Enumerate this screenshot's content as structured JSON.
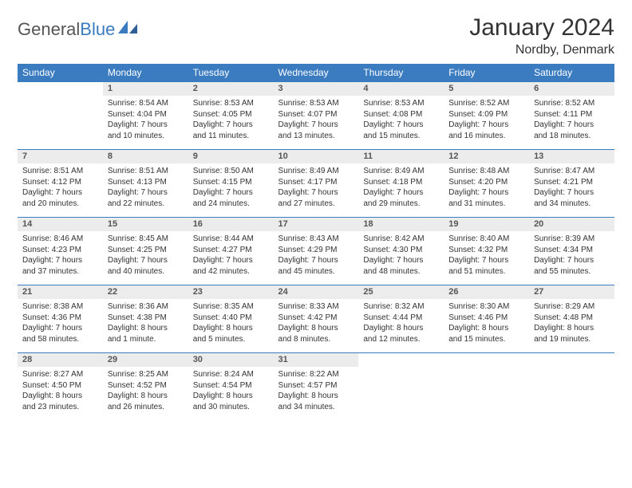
{
  "brand": {
    "part1": "General",
    "part2": "Blue"
  },
  "title": "January 2024",
  "location": "Nordby, Denmark",
  "colors": {
    "header_bg": "#3b7bbf",
    "header_text": "#ffffff",
    "daynum_bg": "#ececec",
    "daynum_border": "#3b7bbf",
    "text": "#333333",
    "page_bg": "#ffffff"
  },
  "weekdays": [
    "Sunday",
    "Monday",
    "Tuesday",
    "Wednesday",
    "Thursday",
    "Friday",
    "Saturday"
  ],
  "weeks": [
    [
      {
        "n": "",
        "sunrise": "",
        "sunset": "",
        "daylight1": "",
        "daylight2": ""
      },
      {
        "n": "1",
        "sunrise": "Sunrise: 8:54 AM",
        "sunset": "Sunset: 4:04 PM",
        "daylight1": "Daylight: 7 hours",
        "daylight2": "and 10 minutes."
      },
      {
        "n": "2",
        "sunrise": "Sunrise: 8:53 AM",
        "sunset": "Sunset: 4:05 PM",
        "daylight1": "Daylight: 7 hours",
        "daylight2": "and 11 minutes."
      },
      {
        "n": "3",
        "sunrise": "Sunrise: 8:53 AM",
        "sunset": "Sunset: 4:07 PM",
        "daylight1": "Daylight: 7 hours",
        "daylight2": "and 13 minutes."
      },
      {
        "n": "4",
        "sunrise": "Sunrise: 8:53 AM",
        "sunset": "Sunset: 4:08 PM",
        "daylight1": "Daylight: 7 hours",
        "daylight2": "and 15 minutes."
      },
      {
        "n": "5",
        "sunrise": "Sunrise: 8:52 AM",
        "sunset": "Sunset: 4:09 PM",
        "daylight1": "Daylight: 7 hours",
        "daylight2": "and 16 minutes."
      },
      {
        "n": "6",
        "sunrise": "Sunrise: 8:52 AM",
        "sunset": "Sunset: 4:11 PM",
        "daylight1": "Daylight: 7 hours",
        "daylight2": "and 18 minutes."
      }
    ],
    [
      {
        "n": "7",
        "sunrise": "Sunrise: 8:51 AM",
        "sunset": "Sunset: 4:12 PM",
        "daylight1": "Daylight: 7 hours",
        "daylight2": "and 20 minutes."
      },
      {
        "n": "8",
        "sunrise": "Sunrise: 8:51 AM",
        "sunset": "Sunset: 4:13 PM",
        "daylight1": "Daylight: 7 hours",
        "daylight2": "and 22 minutes."
      },
      {
        "n": "9",
        "sunrise": "Sunrise: 8:50 AM",
        "sunset": "Sunset: 4:15 PM",
        "daylight1": "Daylight: 7 hours",
        "daylight2": "and 24 minutes."
      },
      {
        "n": "10",
        "sunrise": "Sunrise: 8:49 AM",
        "sunset": "Sunset: 4:17 PM",
        "daylight1": "Daylight: 7 hours",
        "daylight2": "and 27 minutes."
      },
      {
        "n": "11",
        "sunrise": "Sunrise: 8:49 AM",
        "sunset": "Sunset: 4:18 PM",
        "daylight1": "Daylight: 7 hours",
        "daylight2": "and 29 minutes."
      },
      {
        "n": "12",
        "sunrise": "Sunrise: 8:48 AM",
        "sunset": "Sunset: 4:20 PM",
        "daylight1": "Daylight: 7 hours",
        "daylight2": "and 31 minutes."
      },
      {
        "n": "13",
        "sunrise": "Sunrise: 8:47 AM",
        "sunset": "Sunset: 4:21 PM",
        "daylight1": "Daylight: 7 hours",
        "daylight2": "and 34 minutes."
      }
    ],
    [
      {
        "n": "14",
        "sunrise": "Sunrise: 8:46 AM",
        "sunset": "Sunset: 4:23 PM",
        "daylight1": "Daylight: 7 hours",
        "daylight2": "and 37 minutes."
      },
      {
        "n": "15",
        "sunrise": "Sunrise: 8:45 AM",
        "sunset": "Sunset: 4:25 PM",
        "daylight1": "Daylight: 7 hours",
        "daylight2": "and 40 minutes."
      },
      {
        "n": "16",
        "sunrise": "Sunrise: 8:44 AM",
        "sunset": "Sunset: 4:27 PM",
        "daylight1": "Daylight: 7 hours",
        "daylight2": "and 42 minutes."
      },
      {
        "n": "17",
        "sunrise": "Sunrise: 8:43 AM",
        "sunset": "Sunset: 4:29 PM",
        "daylight1": "Daylight: 7 hours",
        "daylight2": "and 45 minutes."
      },
      {
        "n": "18",
        "sunrise": "Sunrise: 8:42 AM",
        "sunset": "Sunset: 4:30 PM",
        "daylight1": "Daylight: 7 hours",
        "daylight2": "and 48 minutes."
      },
      {
        "n": "19",
        "sunrise": "Sunrise: 8:40 AM",
        "sunset": "Sunset: 4:32 PM",
        "daylight1": "Daylight: 7 hours",
        "daylight2": "and 51 minutes."
      },
      {
        "n": "20",
        "sunrise": "Sunrise: 8:39 AM",
        "sunset": "Sunset: 4:34 PM",
        "daylight1": "Daylight: 7 hours",
        "daylight2": "and 55 minutes."
      }
    ],
    [
      {
        "n": "21",
        "sunrise": "Sunrise: 8:38 AM",
        "sunset": "Sunset: 4:36 PM",
        "daylight1": "Daylight: 7 hours",
        "daylight2": "and 58 minutes."
      },
      {
        "n": "22",
        "sunrise": "Sunrise: 8:36 AM",
        "sunset": "Sunset: 4:38 PM",
        "daylight1": "Daylight: 8 hours",
        "daylight2": "and 1 minute."
      },
      {
        "n": "23",
        "sunrise": "Sunrise: 8:35 AM",
        "sunset": "Sunset: 4:40 PM",
        "daylight1": "Daylight: 8 hours",
        "daylight2": "and 5 minutes."
      },
      {
        "n": "24",
        "sunrise": "Sunrise: 8:33 AM",
        "sunset": "Sunset: 4:42 PM",
        "daylight1": "Daylight: 8 hours",
        "daylight2": "and 8 minutes."
      },
      {
        "n": "25",
        "sunrise": "Sunrise: 8:32 AM",
        "sunset": "Sunset: 4:44 PM",
        "daylight1": "Daylight: 8 hours",
        "daylight2": "and 12 minutes."
      },
      {
        "n": "26",
        "sunrise": "Sunrise: 8:30 AM",
        "sunset": "Sunset: 4:46 PM",
        "daylight1": "Daylight: 8 hours",
        "daylight2": "and 15 minutes."
      },
      {
        "n": "27",
        "sunrise": "Sunrise: 8:29 AM",
        "sunset": "Sunset: 4:48 PM",
        "daylight1": "Daylight: 8 hours",
        "daylight2": "and 19 minutes."
      }
    ],
    [
      {
        "n": "28",
        "sunrise": "Sunrise: 8:27 AM",
        "sunset": "Sunset: 4:50 PM",
        "daylight1": "Daylight: 8 hours",
        "daylight2": "and 23 minutes."
      },
      {
        "n": "29",
        "sunrise": "Sunrise: 8:25 AM",
        "sunset": "Sunset: 4:52 PM",
        "daylight1": "Daylight: 8 hours",
        "daylight2": "and 26 minutes."
      },
      {
        "n": "30",
        "sunrise": "Sunrise: 8:24 AM",
        "sunset": "Sunset: 4:54 PM",
        "daylight1": "Daylight: 8 hours",
        "daylight2": "and 30 minutes."
      },
      {
        "n": "31",
        "sunrise": "Sunrise: 8:22 AM",
        "sunset": "Sunset: 4:57 PM",
        "daylight1": "Daylight: 8 hours",
        "daylight2": "and 34 minutes."
      },
      {
        "n": "",
        "sunrise": "",
        "sunset": "",
        "daylight1": "",
        "daylight2": ""
      },
      {
        "n": "",
        "sunrise": "",
        "sunset": "",
        "daylight1": "",
        "daylight2": ""
      },
      {
        "n": "",
        "sunrise": "",
        "sunset": "",
        "daylight1": "",
        "daylight2": ""
      }
    ]
  ]
}
